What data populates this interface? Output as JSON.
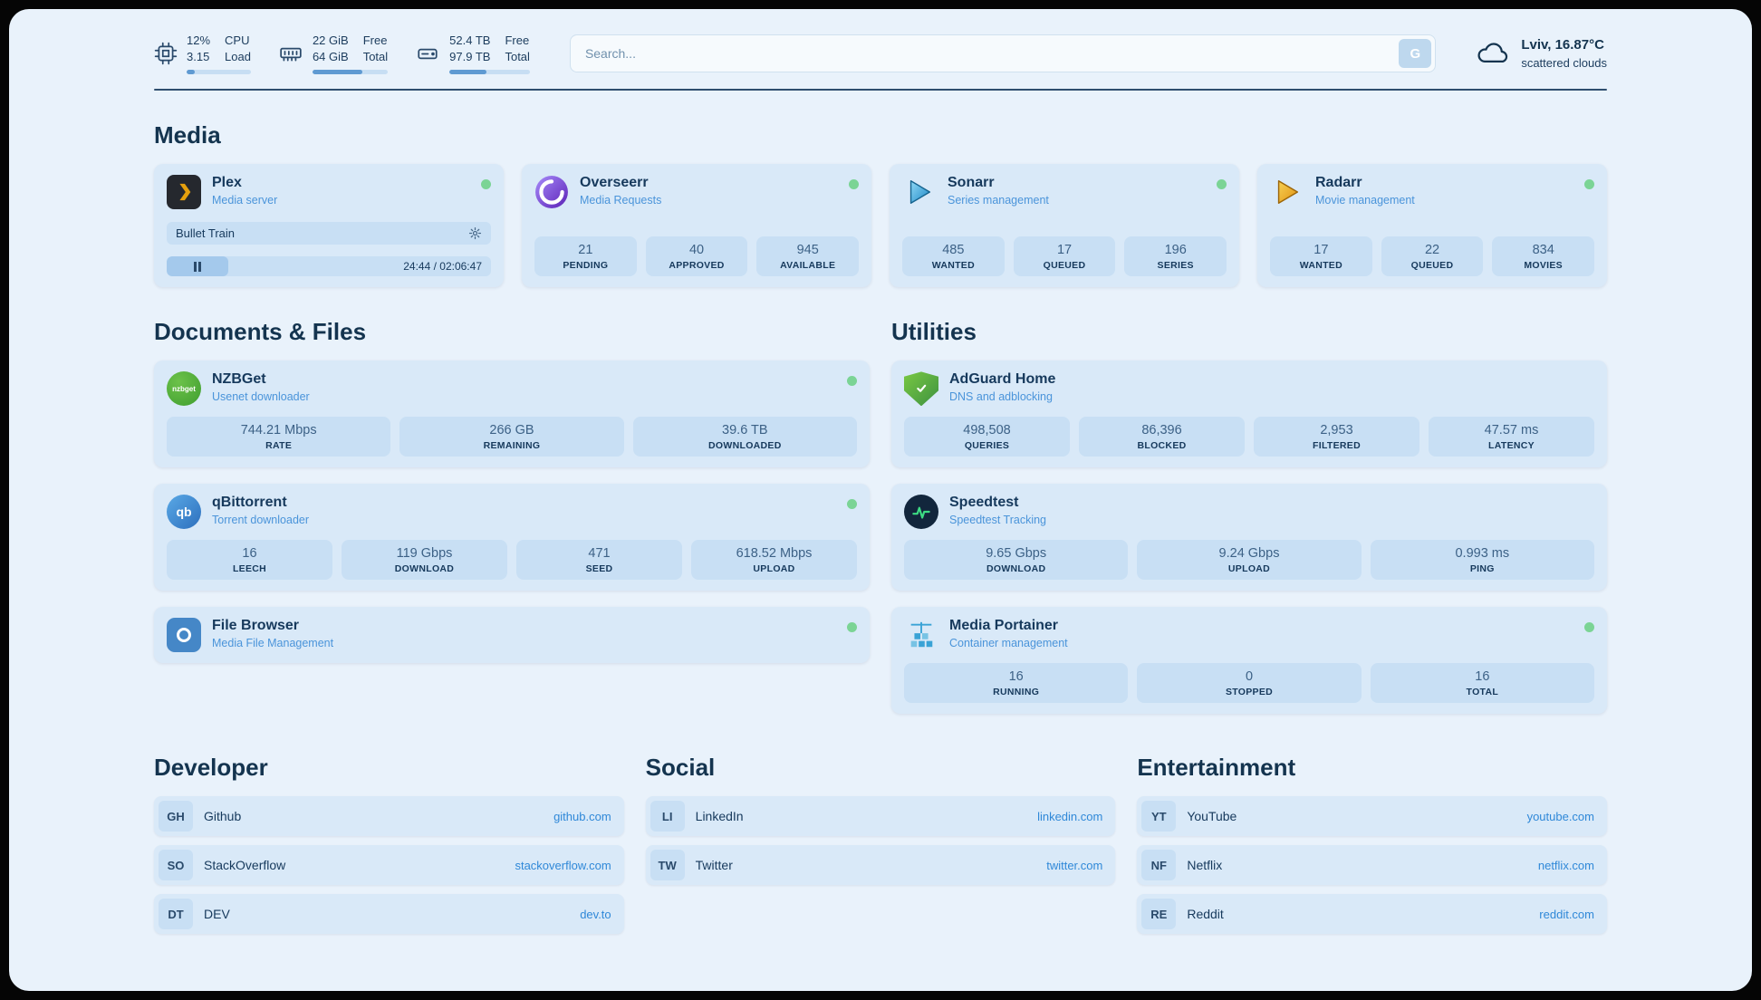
{
  "topbar": {
    "cpu": {
      "percent": "12%",
      "load": "3.15",
      "labels": [
        "CPU",
        "Load"
      ],
      "progress": 12
    },
    "ram": {
      "free": "22 GiB",
      "total": "64 GiB",
      "labels": [
        "Free",
        "Total"
      ],
      "progress": 66
    },
    "disk": {
      "free": "52.4 TB",
      "total": "97.9 TB",
      "labels": [
        "Free",
        "Total"
      ],
      "progress": 46
    },
    "search": {
      "placeholder": "Search...",
      "button_label": "G"
    },
    "weather": {
      "location": "Lviv, 16.87°C",
      "condition": "scattered clouds"
    }
  },
  "sections": {
    "media": {
      "title": "Media",
      "plex": {
        "name": "Plex",
        "subtitle": "Media server",
        "now_playing": "Bullet Train",
        "time": "24:44 / 02:06:47",
        "progress": 19
      },
      "apps": [
        {
          "name": "Overseerr",
          "subtitle": "Media Requests",
          "stats": [
            {
              "value": "21",
              "label": "PENDING"
            },
            {
              "value": "40",
              "label": "APPROVED"
            },
            {
              "value": "945",
              "label": "AVAILABLE"
            }
          ]
        },
        {
          "name": "Sonarr",
          "subtitle": "Series management",
          "stats": [
            {
              "value": "485",
              "label": "WANTED"
            },
            {
              "value": "17",
              "label": "QUEUED"
            },
            {
              "value": "196",
              "label": "SERIES"
            }
          ]
        },
        {
          "name": "Radarr",
          "subtitle": "Movie management",
          "stats": [
            {
              "value": "17",
              "label": "WANTED"
            },
            {
              "value": "22",
              "label": "QUEUED"
            },
            {
              "value": "834",
              "label": "MOVIES"
            }
          ]
        }
      ]
    },
    "documents": {
      "title": "Documents & Files",
      "apps": [
        {
          "name": "NZBGet",
          "subtitle": "Usenet downloader",
          "stats": [
            {
              "value": "744.21 Mbps",
              "label": "RATE"
            },
            {
              "value": "266 GB",
              "label": "REMAINING"
            },
            {
              "value": "39.6 TB",
              "label": "DOWNLOADED"
            }
          ]
        },
        {
          "name": "qBittorrent",
          "subtitle": "Torrent downloader",
          "stats": [
            {
              "value": "16",
              "label": "LEECH"
            },
            {
              "value": "119 Gbps",
              "label": "DOWNLOAD"
            },
            {
              "value": "471",
              "label": "SEED"
            },
            {
              "value": "618.52 Mbps",
              "label": "UPLOAD"
            }
          ]
        },
        {
          "name": "File Browser",
          "subtitle": "Media File Management",
          "stats": []
        }
      ]
    },
    "utilities": {
      "title": "Utilities",
      "apps": [
        {
          "name": "AdGuard Home",
          "subtitle": "DNS and adblocking",
          "stats": [
            {
              "value": "498,508",
              "label": "QUERIES"
            },
            {
              "value": "86,396",
              "label": "BLOCKED"
            },
            {
              "value": "2,953",
              "label": "FILTERED"
            },
            {
              "value": "47.57 ms",
              "label": "LATENCY"
            }
          ]
        },
        {
          "name": "Speedtest",
          "subtitle": "Speedtest Tracking",
          "stats": [
            {
              "value": "9.65 Gbps",
              "label": "DOWNLOAD"
            },
            {
              "value": "9.24 Gbps",
              "label": "UPLOAD"
            },
            {
              "value": "0.993 ms",
              "label": "PING"
            }
          ]
        },
        {
          "name": "Media Portainer",
          "subtitle": "Container management",
          "stats": [
            {
              "value": "16",
              "label": "RUNNING"
            },
            {
              "value": "0",
              "label": "STOPPED"
            },
            {
              "value": "16",
              "label": "TOTAL"
            }
          ]
        }
      ]
    }
  },
  "bookmarks": [
    {
      "title": "Developer",
      "items": [
        {
          "abbr": "GH",
          "name": "Github",
          "url": "github.com"
        },
        {
          "abbr": "SO",
          "name": "StackOverflow",
          "url": "stackoverflow.com"
        },
        {
          "abbr": "DT",
          "name": "DEV",
          "url": "dev.to"
        }
      ]
    },
    {
      "title": "Social",
      "items": [
        {
          "abbr": "LI",
          "name": "LinkedIn",
          "url": "linkedin.com"
        },
        {
          "abbr": "TW",
          "name": "Twitter",
          "url": "twitter.com"
        }
      ]
    },
    {
      "title": "Entertainment",
      "items": [
        {
          "abbr": "YT",
          "name": "YouTube",
          "url": "youtube.com"
        },
        {
          "abbr": "NF",
          "name": "Netflix",
          "url": "netflix.com"
        },
        {
          "abbr": "RE",
          "name": "Reddit",
          "url": "reddit.com"
        }
      ]
    }
  ],
  "logo_labels": {
    "nzbget": "nzbget",
    "qbittorrent": "qb"
  },
  "colors": {
    "accent_blue": "#2f88d8",
    "status_green": "#7bd495",
    "plex_amber": "#e5a00d"
  }
}
